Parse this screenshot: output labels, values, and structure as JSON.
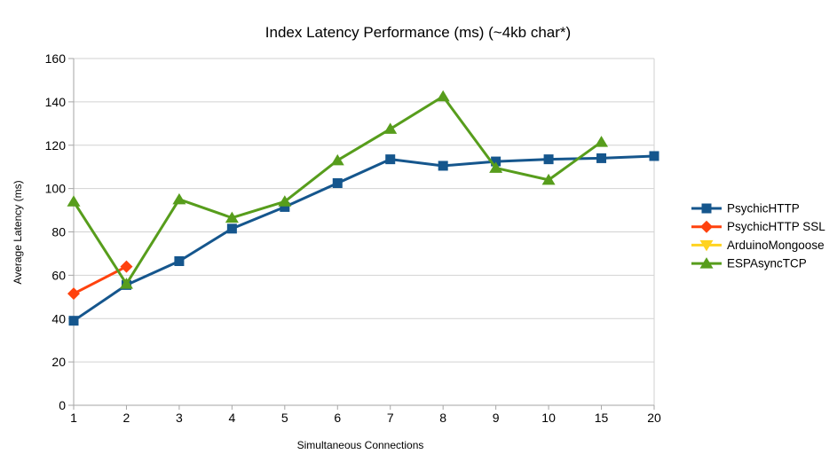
{
  "chart_data": {
    "type": "line",
    "title": "Index Latency Performance (ms) (~4kb char*)",
    "xlabel": "Simultaneous Connections",
    "ylabel": "Average Latency (ms)",
    "categories": [
      "1",
      "2",
      "3",
      "4",
      "5",
      "6",
      "7",
      "8",
      "9",
      "10",
      "15",
      "20"
    ],
    "y_ticks": [
      0,
      20,
      40,
      60,
      80,
      100,
      120,
      140,
      160
    ],
    "ylim": [
      0,
      160
    ],
    "grid": "horizontal",
    "legend_position": "right",
    "series": [
      {
        "name": "PsychicHTTP",
        "color": "#15568D",
        "marker": "square",
        "values": [
          39,
          55.5,
          66.5,
          81.5,
          91.5,
          102.5,
          113.5,
          110.5,
          112.5,
          113.5,
          114,
          115
        ]
      },
      {
        "name": "PsychicHTTP SSL",
        "color": "#FF420E",
        "marker": "diamond",
        "values": [
          51.5,
          64,
          null,
          null,
          null,
          null,
          null,
          null,
          null,
          null,
          null,
          null
        ]
      },
      {
        "name": "ArduinoMongoose",
        "color": "#FFD320",
        "marker": "triangle-down",
        "values": [
          null,
          null,
          null,
          null,
          null,
          null,
          null,
          null,
          null,
          null,
          null,
          null
        ]
      },
      {
        "name": "ESPAsyncTCP",
        "color": "#579D1C",
        "marker": "triangle-up",
        "values": [
          94,
          56,
          95,
          86.5,
          94,
          113,
          127.5,
          142.5,
          109.5,
          104,
          121.5,
          null
        ]
      }
    ],
    "style": {
      "grid_color": "#d2d2d2",
      "axis_color": "#a6a6a6",
      "text_color": "#000000",
      "background": "#ffffff"
    }
  }
}
